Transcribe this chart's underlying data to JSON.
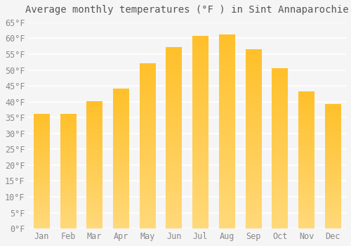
{
  "title": "Average monthly temperatures (°F ) in Sint Annaparochie",
  "months": [
    "Jan",
    "Feb",
    "Mar",
    "Apr",
    "May",
    "Jun",
    "Jul",
    "Aug",
    "Sep",
    "Oct",
    "Nov",
    "Dec"
  ],
  "values": [
    36,
    36,
    40,
    44,
    52,
    57,
    60.5,
    61,
    56.5,
    50.5,
    43,
    39
  ],
  "bar_color_top": "#FFC02A",
  "bar_color_bottom": "#FFD97A",
  "ylim": [
    0,
    65
  ],
  "yticks": [
    0,
    5,
    10,
    15,
    20,
    25,
    30,
    35,
    40,
    45,
    50,
    55,
    60,
    65
  ],
  "ytick_labels": [
    "0°F",
    "5°F",
    "10°F",
    "15°F",
    "20°F",
    "25°F",
    "30°F",
    "35°F",
    "40°F",
    "45°F",
    "50°F",
    "55°F",
    "60°F",
    "65°F"
  ],
  "background_color": "#F5F5F5",
  "grid_color": "#FFFFFF",
  "title_fontsize": 10,
  "tick_fontsize": 8.5,
  "font_family": "monospace"
}
